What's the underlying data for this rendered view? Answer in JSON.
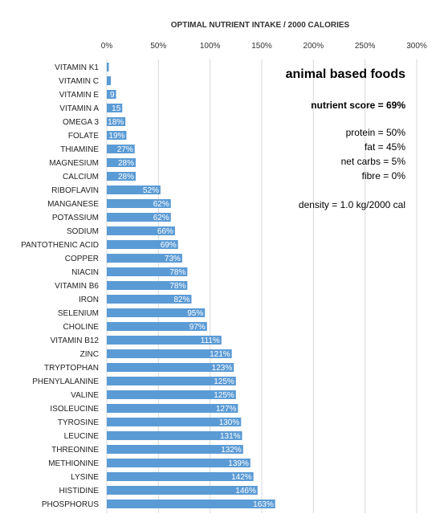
{
  "chart_data": {
    "type": "bar",
    "orientation": "horizontal",
    "title": "OPTIMAL NUTRIENT INTAKE / 2000 CALORIES",
    "xlim": [
      0,
      300
    ],
    "xticks": [
      0,
      50,
      100,
      150,
      200,
      250,
      300
    ],
    "xtick_labels": [
      "0%",
      "50%",
      "100%",
      "150%",
      "200%",
      "250%",
      "300%"
    ],
    "grid": true,
    "bar_color": "#5b9bd5",
    "categories": [
      "VITAMIN K1",
      "VITAMIN C",
      "VITAMIN E",
      "VITAMIN A",
      "OMEGA 3",
      "FOLATE",
      "THIAMINE",
      "MAGNESIUM",
      "CALCIUM",
      "RIBOFLAVIN",
      "MANGANESE",
      "POTASSIUM",
      "SODIUM",
      "PANTOTHENIC ACID",
      "COPPER",
      "NIACIN",
      "VITAMIN B6",
      "IRON",
      "SELENIUM",
      "CHOLINE",
      "VITAMIN B12",
      "ZINC",
      "TRYPTOPHAN",
      "PHENYLALANINE",
      "VALINE",
      "ISOLEUCINE",
      "TYROSINE",
      "LEUCINE",
      "THREONINE",
      "METHIONINE",
      "LYSINE",
      "HISTIDINE",
      "PHOSPHORUS"
    ],
    "values": [
      2,
      4,
      9,
      15,
      18,
      19,
      27,
      28,
      28,
      52,
      62,
      62,
      66,
      69,
      73,
      78,
      78,
      82,
      95,
      97,
      111,
      121,
      123,
      125,
      125,
      127,
      130,
      131,
      132,
      139,
      142,
      146,
      163
    ],
    "data_labels": [
      "",
      "",
      "9",
      "15",
      "18%",
      "19%",
      "27%",
      "28%",
      "28%",
      "52%",
      "62%",
      "62%",
      "66%",
      "69%",
      "73%",
      "78%",
      "78%",
      "82%",
      "95%",
      "97%",
      "111%",
      "121%",
      "123%",
      "125%",
      "125%",
      "127%",
      "130%",
      "131%",
      "132%",
      "139%",
      "142%",
      "146%",
      "163%"
    ]
  },
  "annotation": {
    "heading": "animal based foods",
    "score": "nutrient score = 69%",
    "macros": [
      "protein = 50%",
      "fat = 45%",
      "net carbs = 5%",
      "fibre = 0%"
    ],
    "density": "density = 1.0 kg/2000 cal"
  }
}
